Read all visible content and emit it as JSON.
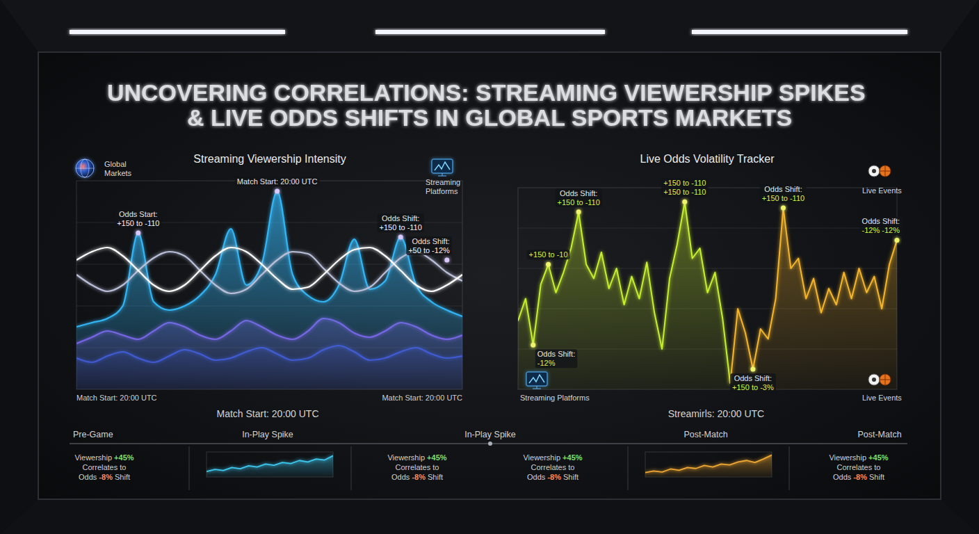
{
  "title": "UNCOVERING CORRELATIONS: STREAMING VIEWERSHIP SPIKES & LIVE ODDS SHIFTS IN GLOBAL SPORTS MARKETS",
  "chart_data": [
    {
      "type": "line",
      "title": "Streaming Viewership Intensity",
      "xlabel": "Match Start: 20:00 UTC",
      "x": [
        0,
        4,
        8,
        12,
        16,
        20,
        24,
        28,
        32,
        36,
        40,
        44,
        48,
        52,
        56,
        60,
        64,
        68,
        72,
        76,
        80,
        84,
        88,
        92,
        96,
        100
      ],
      "xlim": [
        0,
        100
      ],
      "ylim": [
        0,
        100
      ],
      "yticks": [
        20,
        40,
        60,
        80
      ],
      "grid": true,
      "tick_labels": false,
      "series": [
        {
          "type": "area",
          "color": "#3548c8",
          "values": [
            15,
            13,
            16,
            18,
            15,
            13,
            16,
            19,
            17,
            14,
            15,
            18,
            20,
            17,
            14,
            15,
            19,
            21,
            18,
            14,
            15,
            18,
            20,
            17,
            15,
            16
          ]
        },
        {
          "type": "area",
          "color": "#8a4fe0",
          "values": [
            22,
            25,
            28,
            26,
            24,
            28,
            32,
            30,
            26,
            24,
            28,
            33,
            30,
            26,
            24,
            28,
            34,
            32,
            27,
            25,
            28,
            32,
            30,
            26,
            24,
            26
          ]
        },
        {
          "type": "area",
          "color": "#33b5f5",
          "values": [
            30,
            32,
            34,
            40,
            75,
            42,
            38,
            40,
            45,
            55,
            77,
            50,
            60,
            95,
            55,
            45,
            42,
            50,
            72,
            48,
            52,
            73,
            50,
            42,
            38,
            35
          ]
        },
        {
          "type": "line",
          "color": "#b9bfd8",
          "values": [
            55,
            50,
            47,
            50,
            57,
            63,
            66,
            64,
            57,
            50,
            46,
            48,
            55,
            62,
            66,
            65,
            58,
            51,
            47,
            49,
            56,
            63,
            66,
            62,
            56,
            52
          ]
        },
        {
          "type": "line",
          "color": "#ffffff",
          "values": [
            62,
            66,
            68,
            64,
            57,
            50,
            47,
            50,
            57,
            64,
            68,
            66,
            60,
            53,
            48,
            49,
            55,
            62,
            67,
            68,
            64,
            57,
            50,
            47,
            50,
            55
          ]
        }
      ],
      "annotations": [
        {
          "lines": [
            "Odds Start:",
            "+150 to -110"
          ],
          "x": 16,
          "y": 75
        },
        {
          "lines": [
            "Match Start: 20:00 UTC"
          ],
          "x": 52,
          "y": 95
        },
        {
          "lines": [
            "Odds Shift:",
            "+150 to -110"
          ],
          "x": 84,
          "y": 73
        },
        {
          "lines": [
            "Odds Shift:",
            "+50 to -12%"
          ],
          "x": 96,
          "y": 62
        }
      ],
      "badges": [
        "Global Markets",
        "Streaming Platforms"
      ],
      "footnotes": [
        "Match Start: 20:00 UTC",
        "Match Start: 20:00 UTC"
      ]
    },
    {
      "type": "line",
      "title": "Live Odds Volatility Tracker",
      "xlabel": "Streamirls: 20:00 UTC",
      "x": [
        0,
        2,
        4,
        6,
        8,
        10,
        12,
        14,
        16,
        18,
        20,
        22,
        24,
        26,
        28,
        30,
        32,
        34,
        36,
        38,
        40,
        42,
        44,
        46,
        48,
        50,
        52,
        54,
        56,
        58,
        60,
        62,
        64,
        66,
        68,
        70,
        72,
        74,
        76,
        78,
        80,
        82,
        84,
        86,
        88,
        90,
        92,
        94,
        96,
        98,
        100
      ],
      "xlim": [
        0,
        100
      ],
      "ylim": [
        0,
        100
      ],
      "yticks": [
        20,
        40,
        60,
        80
      ],
      "grid": true,
      "tick_labels": false,
      "series": [
        {
          "type": "area",
          "color": "#c6ef2e",
          "values": [
            34,
            45,
            22,
            52,
            62,
            48,
            58,
            70,
            88,
            62,
            55,
            68,
            50,
            60,
            42,
            56,
            45,
            63,
            38,
            20,
            55,
            72,
            93,
            65,
            70,
            48,
            58,
            35,
            3,
            null,
            null,
            null,
            null,
            null,
            null,
            null,
            null,
            null,
            null,
            null,
            null,
            null,
            null,
            null,
            null,
            null,
            null,
            null,
            null,
            null,
            null
          ]
        },
        {
          "type": "area",
          "color": "#f5b52a",
          "values": [
            null,
            null,
            null,
            null,
            null,
            null,
            null,
            null,
            null,
            null,
            null,
            null,
            null,
            null,
            null,
            null,
            null,
            null,
            null,
            null,
            null,
            null,
            null,
            null,
            null,
            null,
            null,
            null,
            3,
            40,
            28,
            10,
            30,
            25,
            45,
            90,
            60,
            65,
            45,
            55,
            38,
            50,
            42,
            58,
            45,
            60,
            48,
            56,
            40,
            62,
            74
          ]
        }
      ],
      "annotations": [
        {
          "lines": [
            "+150 to -10"
          ],
          "x": 8,
          "y": 62
        },
        {
          "lines": [
            "Odds Shift:",
            "+150 to -110"
          ],
          "x": 16,
          "y": 88
        },
        {
          "lines": [
            "+150 to -110",
            "+150 to -110"
          ],
          "x": 44,
          "y": 93
        },
        {
          "lines": [
            "Odds Shift:",
            "+150 to -110"
          ],
          "x": 70,
          "y": 90
        },
        {
          "lines": [
            "Odds Shift:",
            "-12% -12%"
          ],
          "x": 100,
          "y": 74
        },
        {
          "lines": [
            "Odds Shift:",
            "-12%"
          ],
          "x": 4,
          "y": 22
        },
        {
          "lines": [
            "Odds Shift:",
            "+150 to -3%"
          ],
          "x": 62,
          "y": 10
        }
      ],
      "badges": [
        "Live Events",
        "Streaming Platforms",
        "Live Events"
      ]
    },
    {
      "type": "line",
      "x": [
        0,
        1,
        2,
        3,
        4,
        5,
        6,
        7,
        8,
        9,
        10,
        11,
        12,
        13,
        14,
        15
      ],
      "xlim": [
        0,
        15
      ],
      "ylim": [
        0,
        100
      ],
      "tick_labels": false,
      "series": [
        {
          "type": "area",
          "color": "#3cc8f0",
          "values": [
            22,
            30,
            26,
            38,
            33,
            45,
            40,
            52,
            47,
            58,
            54,
            66,
            60,
            72,
            68,
            85
          ]
        }
      ]
    },
    {
      "type": "line",
      "x": [
        0,
        1,
        2,
        3,
        4,
        5,
        6,
        7,
        8,
        9,
        10,
        11,
        12,
        13,
        14,
        15
      ],
      "xlim": [
        0,
        15
      ],
      "ylim": [
        0,
        100
      ],
      "tick_labels": false,
      "series": [
        {
          "type": "area",
          "color": "#f0a830",
          "values": [
            18,
            24,
            20,
            32,
            27,
            38,
            34,
            46,
            40,
            52,
            48,
            60,
            66,
            58,
            72,
            88
          ]
        }
      ]
    }
  ],
  "timeline": {
    "phases": [
      "Pre-Game",
      "In-Play Spike",
      "In-Play Spike",
      "Post-Match",
      "Post-Match"
    ],
    "stats": [
      {
        "lines": [
          "Viewership +45%",
          "Correlates to",
          "Odds -8% Shift"
        ]
      },
      {
        "lines": [
          "Viewership +45%",
          "Correlates to",
          "Odds -8% Shift"
        ]
      },
      {
        "lines": [
          "Viewership +45%",
          "Correlates to",
          "Odds -8% Shift"
        ]
      },
      {
        "lines": [
          "Viewership +45%",
          "Correlates to",
          "Odds -8% Shift"
        ]
      }
    ]
  }
}
